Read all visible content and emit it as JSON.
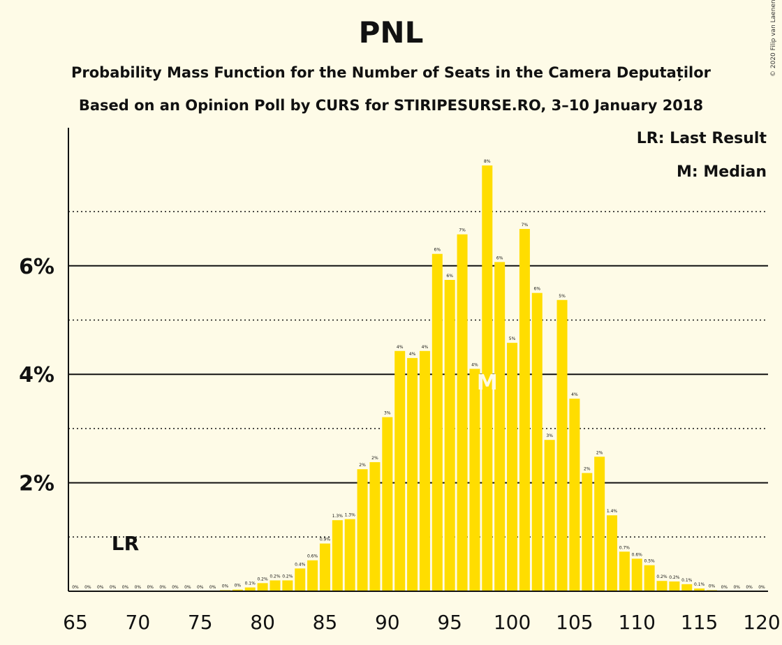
{
  "chart_data": {
    "type": "bar",
    "title": "PNL",
    "subtitle": "Probability Mass Function for the Number of Seats in the Camera Deputaților",
    "subtitle2": "Based on an Opinion Poll by CURS for STIRIPESURSE.RO, 3–10 January 2018",
    "legend": [
      "LR: Last Result",
      "M: Median"
    ],
    "copyright": "© 2020 Filip van Laenen",
    "last_result_label": "LR",
    "last_result_seat": 69,
    "median_label": "M",
    "median_seat": 98,
    "ylim": [
      0,
      7.85
    ],
    "y_ticks": [
      2,
      4,
      6
    ],
    "y_tick_labels": [
      "2%",
      "4%",
      "6%"
    ],
    "y_dotted_lines": [
      1,
      3,
      5,
      7
    ],
    "x_ticks": [
      65,
      70,
      75,
      80,
      85,
      90,
      95,
      100,
      105,
      110,
      115,
      120
    ],
    "x_tick_labels": [
      "65",
      "70",
      "75",
      "80",
      "85",
      "90",
      "95",
      "100",
      "105",
      "110",
      "115",
      "120"
    ],
    "bar_color": "#ffdd00",
    "seats": [
      65,
      66,
      67,
      68,
      69,
      70,
      71,
      72,
      73,
      74,
      75,
      76,
      77,
      78,
      79,
      80,
      81,
      82,
      83,
      84,
      85,
      86,
      87,
      88,
      89,
      90,
      91,
      92,
      93,
      94,
      95,
      96,
      97,
      98,
      99,
      100,
      101,
      102,
      103,
      104,
      105,
      106,
      107,
      108,
      109,
      110,
      111,
      112,
      113,
      114,
      115,
      116,
      117,
      118,
      119,
      120
    ],
    "values": [
      0,
      0,
      0,
      0,
      0,
      0,
      0,
      0,
      0,
      0,
      0,
      0,
      0.02,
      0.03,
      0.07,
      0.15,
      0.2,
      0.2,
      0.42,
      0.57,
      0.88,
      1.31,
      1.33,
      2.25,
      2.38,
      3.21,
      4.43,
      4.3,
      4.43,
      6.22,
      5.74,
      6.58,
      4.1,
      7.85,
      6.07,
      4.58,
      6.68,
      5.5,
      2.79,
      5.37,
      3.55,
      2.18,
      2.48,
      1.4,
      0.73,
      0.6,
      0.48,
      0.19,
      0.18,
      0.13,
      0.05,
      0.02,
      0,
      0,
      0,
      0
    ],
    "value_labels": [
      "0%",
      "0%",
      "0%",
      "0%",
      "0%",
      "0%",
      "0%",
      "0%",
      "0%",
      "0%",
      "0%",
      "0%",
      "0%",
      "0%",
      "0.1%",
      "0.2%",
      "0.2%",
      "0.2%",
      "0.4%",
      "0.6%",
      "0.9%",
      "1.3%",
      "1.3%",
      "2%",
      "2%",
      "3%",
      "4%",
      "4%",
      "4%",
      "6%",
      "6%",
      "7%",
      "4%",
      "8%",
      "6%",
      "5%",
      "7%",
      "6%",
      "3%",
      "5%",
      "4%",
      "2%",
      "2%",
      "1.4%",
      "0.7%",
      "0.6%",
      "0.5%",
      "0.2%",
      "0.2%",
      "0.1%",
      "0.1%",
      "0%",
      "0%",
      "0%",
      "0%",
      "0%"
    ]
  }
}
